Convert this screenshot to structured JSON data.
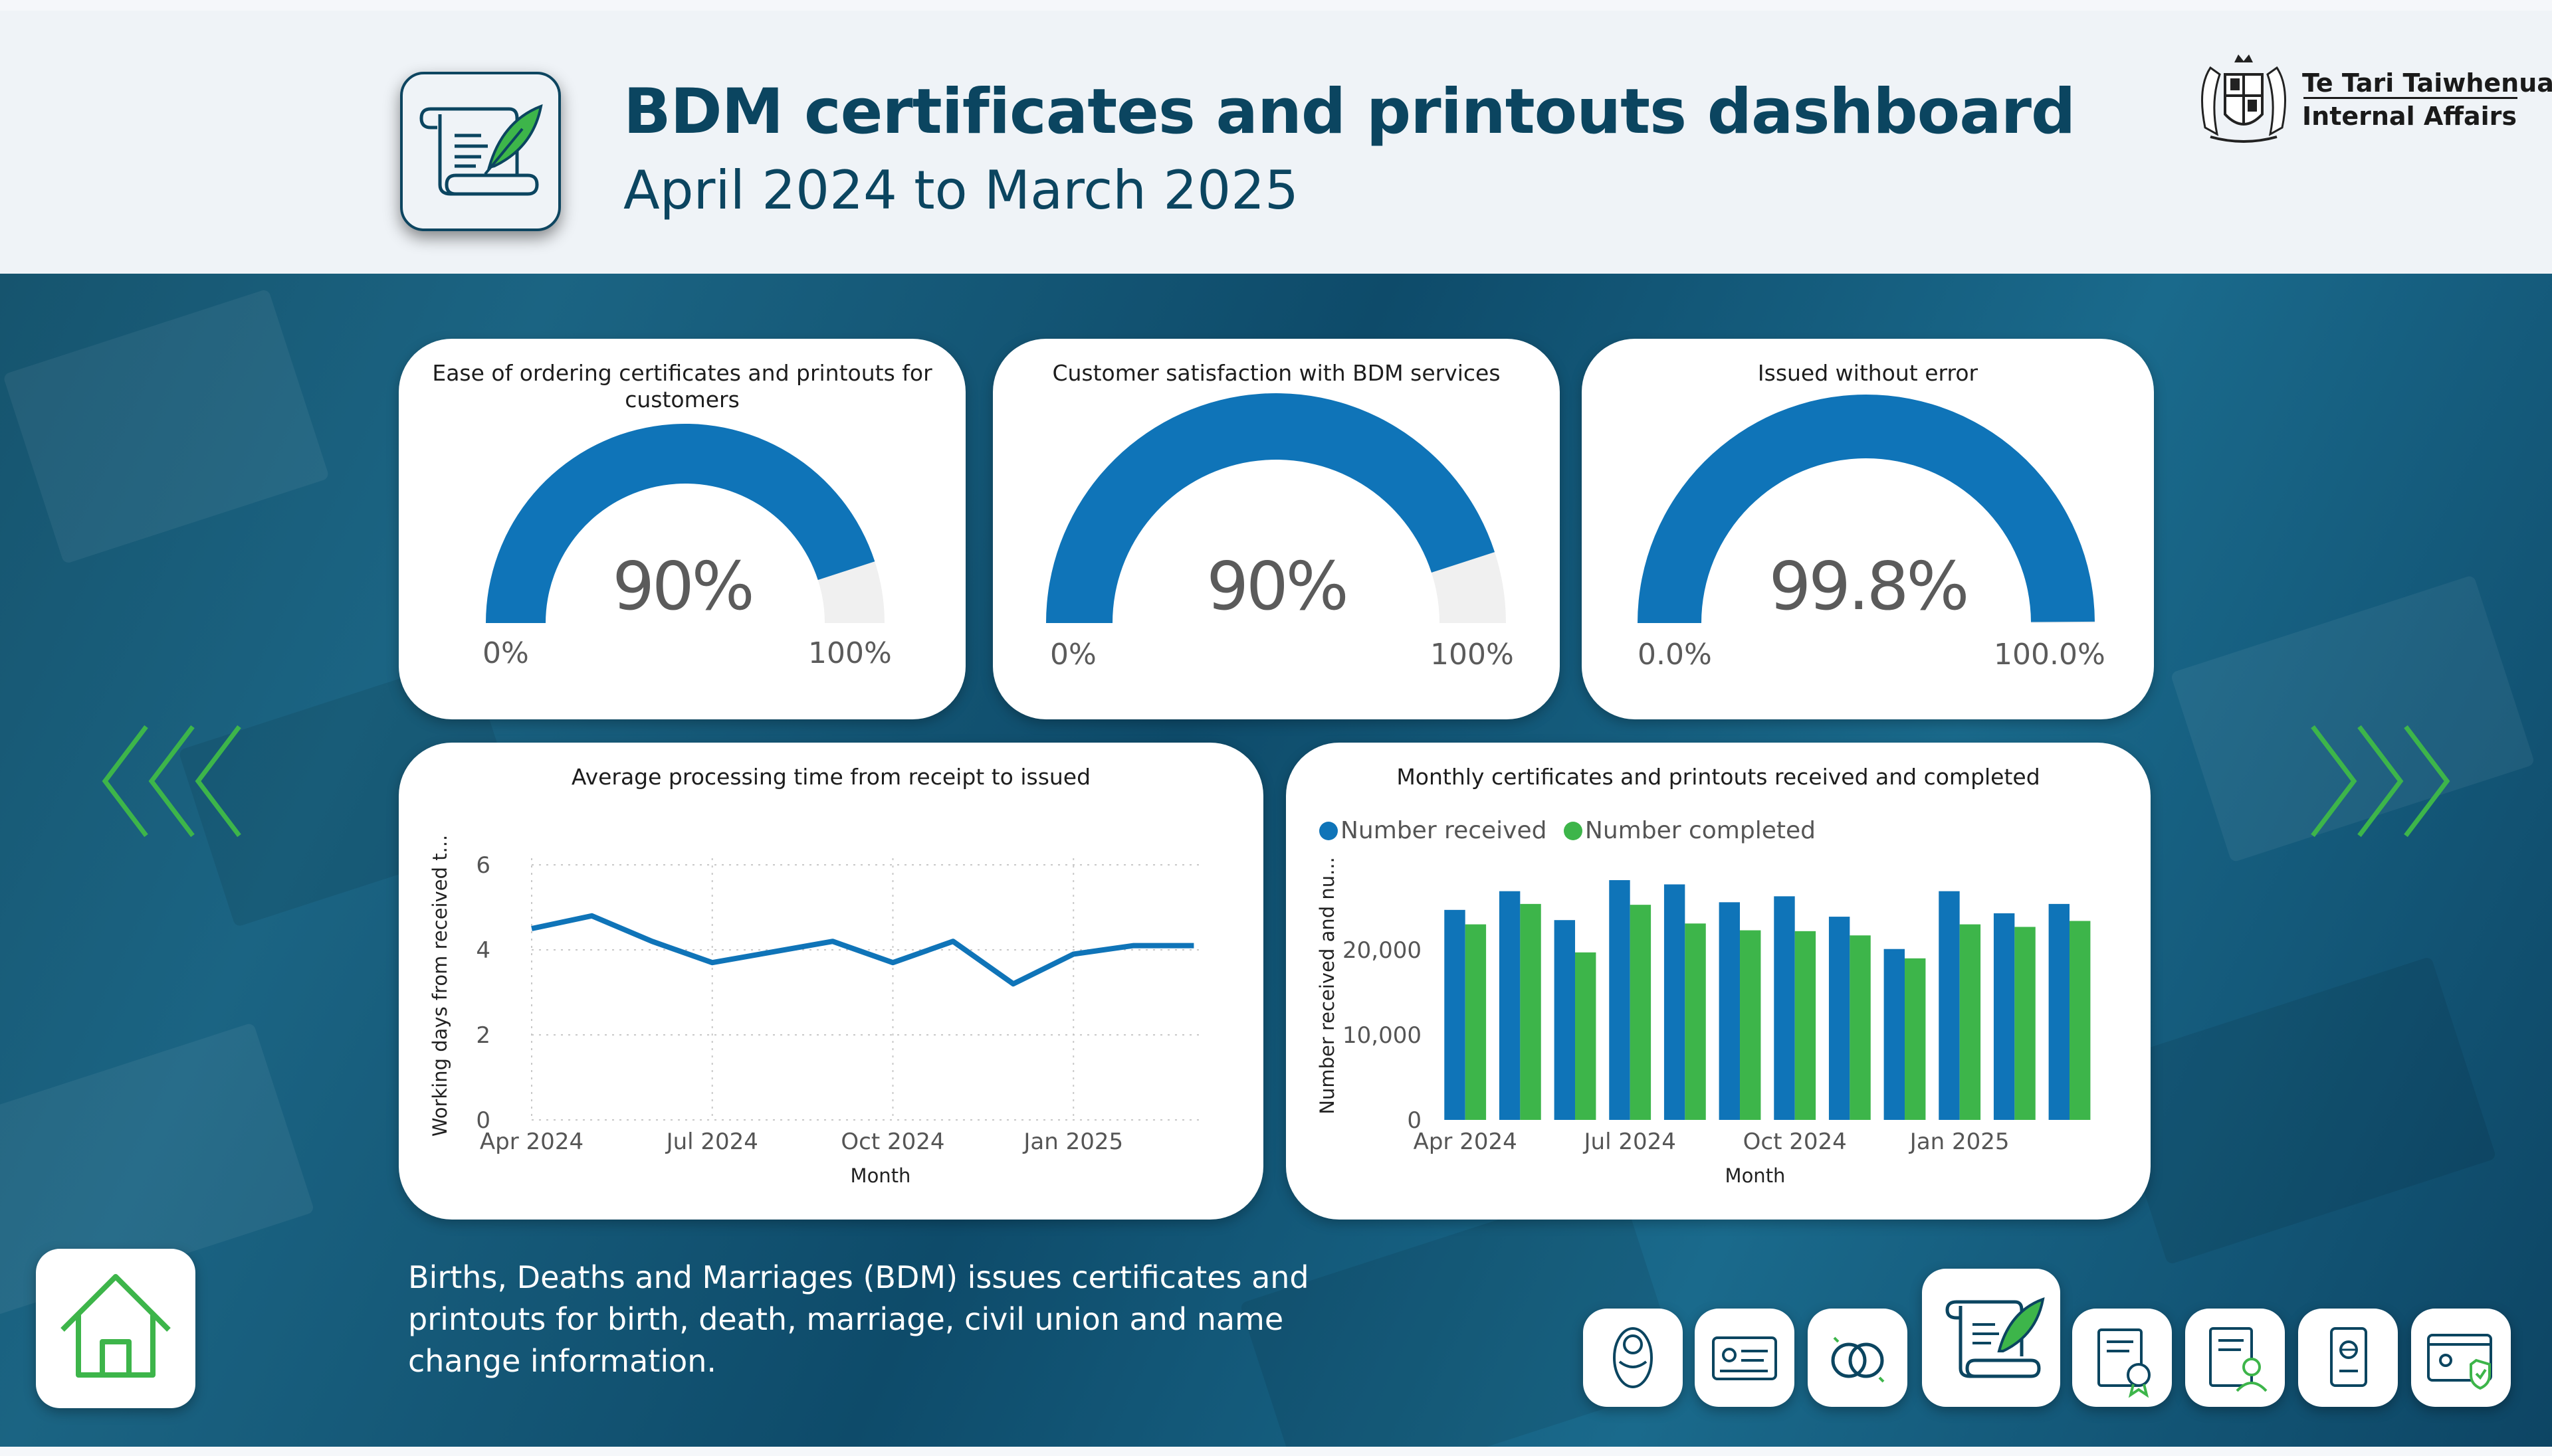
{
  "header": {
    "title": "BDM certificates and printouts dashboard",
    "subtitle": "April 2024 to March 2025",
    "logo_line1": "Te Tari Taiwhenua",
    "logo_line2": "Internal Affairs"
  },
  "gauges": [
    {
      "title": "Ease of ordering certificates and printouts for customers",
      "value": 0.9,
      "value_label": "90%",
      "min_label": "0%",
      "max_label": "100%"
    },
    {
      "title": "Customer satisfaction with BDM services",
      "value": 0.9,
      "value_label": "90%",
      "min_label": "0%",
      "max_label": "100%"
    },
    {
      "title": "Issued without error",
      "value": 0.998,
      "value_label": "99.8%",
      "min_label": "0.0%",
      "max_label": "100.0%"
    }
  ],
  "colors": {
    "gauge_fill": "#0f74b8",
    "gauge_track": "#f0f0f0",
    "received": "#0f74b8",
    "completed": "#3db54a",
    "line": "#0f74b8",
    "accent_green": "#3db54a"
  },
  "chart_data": [
    {
      "type": "line",
      "title": "Average processing time from receipt to issued",
      "xlabel": "Month",
      "ylabel": "Working days from received t...",
      "ylim": [
        0,
        6
      ],
      "yticks": [
        0,
        2,
        4,
        6
      ],
      "ytick_labels": [
        "0",
        "2",
        "4",
        "6"
      ],
      "xtick_labels": [
        "Apr 2024",
        "Jul 2024",
        "Oct 2024",
        "Jan 2025"
      ],
      "xtick_index": [
        0,
        3,
        6,
        9
      ],
      "x": [
        "Apr 2024",
        "May 2024",
        "Jun 2024",
        "Jul 2024",
        "Aug 2024",
        "Sep 2024",
        "Oct 2024",
        "Nov 2024",
        "Dec 2024",
        "Jan 2025",
        "Feb 2025",
        "Mar 2025"
      ],
      "series": [
        {
          "values": [
            4.5,
            4.8,
            4.2,
            3.7,
            3.95,
            4.2,
            3.7,
            4.2,
            3.2,
            3.9,
            4.1,
            4.1
          ]
        }
      ],
      "grid": true
    },
    {
      "type": "bar",
      "title": "Monthly certificates and printouts received and completed",
      "xlabel": "Month",
      "ylabel": "Number received and nu...",
      "ylim": [
        0,
        30000
      ],
      "yticks": [
        0,
        10000,
        20000
      ],
      "ytick_labels": [
        "0",
        "10,000",
        "20,000"
      ],
      "xtick_labels": [
        "Apr 2024",
        "Jul 2024",
        "Oct 2024",
        "Jan 2025"
      ],
      "xtick_index": [
        0,
        3,
        6,
        9
      ],
      "categories": [
        "Apr 2024",
        "May 2024",
        "Jun 2024",
        "Jul 2024",
        "Aug 2024",
        "Sep 2024",
        "Oct 2024",
        "Nov 2024",
        "Dec 2024",
        "Jan 2025",
        "Feb 2025",
        "Mar 2025"
      ],
      "series": [
        {
          "name": "Number received",
          "values": [
            24700,
            26900,
            23500,
            28200,
            27700,
            25600,
            26300,
            23900,
            20100,
            26900,
            24300,
            25400
          ]
        },
        {
          "name": "Number completed",
          "values": [
            23000,
            25400,
            19700,
            25300,
            23100,
            22300,
            22200,
            21700,
            19000,
            23000,
            22700,
            23400
          ]
        }
      ],
      "legend": "top-left",
      "grid": false
    }
  ],
  "description": "Births, Deaths and Marriages (BDM) issues certificates and printouts for birth, death, marriage, civil union and name change information.",
  "nav": {
    "items": [
      "baby-icon",
      "id-card-icon",
      "rings-icon",
      "scroll-quill-icon",
      "certificate-seal-icon",
      "person-document-icon",
      "passport-icon",
      "secure-web-icon"
    ],
    "active_index": 3
  }
}
